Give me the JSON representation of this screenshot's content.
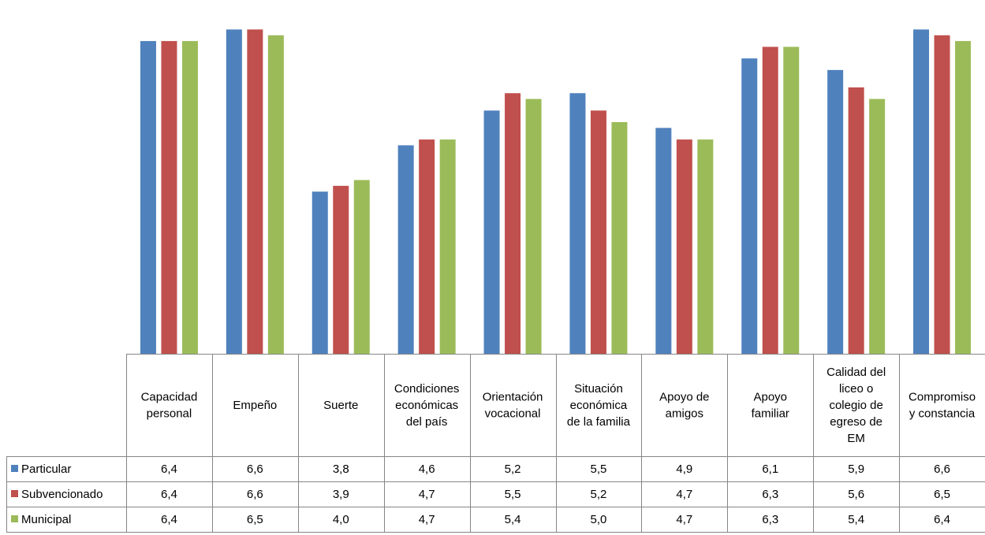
{
  "chart_data": {
    "type": "bar",
    "title": "",
    "xlabel": "",
    "ylabel": "",
    "categories": [
      [
        "Capacidad",
        "personal"
      ],
      [
        "Empeño"
      ],
      [
        "Suerte"
      ],
      [
        "Condiciones",
        "económicas",
        "del país"
      ],
      [
        "Orientación",
        "vocacional"
      ],
      [
        "Situación",
        "económica",
        "de la familia"
      ],
      [
        "Apoyo de",
        "amigos"
      ],
      [
        "Apoyo",
        "familiar"
      ],
      [
        "Calidad del",
        "liceo o",
        "colegio de",
        "egreso de",
        "EM"
      ],
      [
        "Compromiso",
        "y constancia"
      ]
    ],
    "series": [
      {
        "name": "Particular",
        "color": "#4F81BD",
        "values": [
          6.4,
          6.6,
          3.8,
          4.6,
          5.2,
          5.5,
          4.9,
          6.1,
          5.9,
          6.6
        ],
        "labels": [
          "6,4",
          "6,6",
          "3,8",
          "4,6",
          "5,2",
          "5,5",
          "4,9",
          "6,1",
          "5,9",
          "6,6"
        ]
      },
      {
        "name": "Subvencionado",
        "color": "#C0504D",
        "values": [
          6.4,
          6.6,
          3.9,
          4.7,
          5.5,
          5.2,
          4.7,
          6.3,
          5.6,
          6.5
        ],
        "labels": [
          "6,4",
          "6,6",
          "3,9",
          "4,7",
          "5,5",
          "5,2",
          "4,7",
          "6,3",
          "5,6",
          "6,5"
        ]
      },
      {
        "name": "Municipal",
        "color": "#9BBB59",
        "values": [
          6.4,
          6.5,
          4.0,
          4.7,
          5.4,
          5.0,
          4.7,
          6.3,
          5.4,
          6.4
        ],
        "labels": [
          "6,4",
          "6,5",
          "4,0",
          "4,7",
          "5,4",
          "5,0",
          "4,7",
          "6,3",
          "5,4",
          "6,4"
        ]
      }
    ],
    "ylim": [
      1,
      7
    ],
    "grid": false,
    "legend": "data-table"
  }
}
